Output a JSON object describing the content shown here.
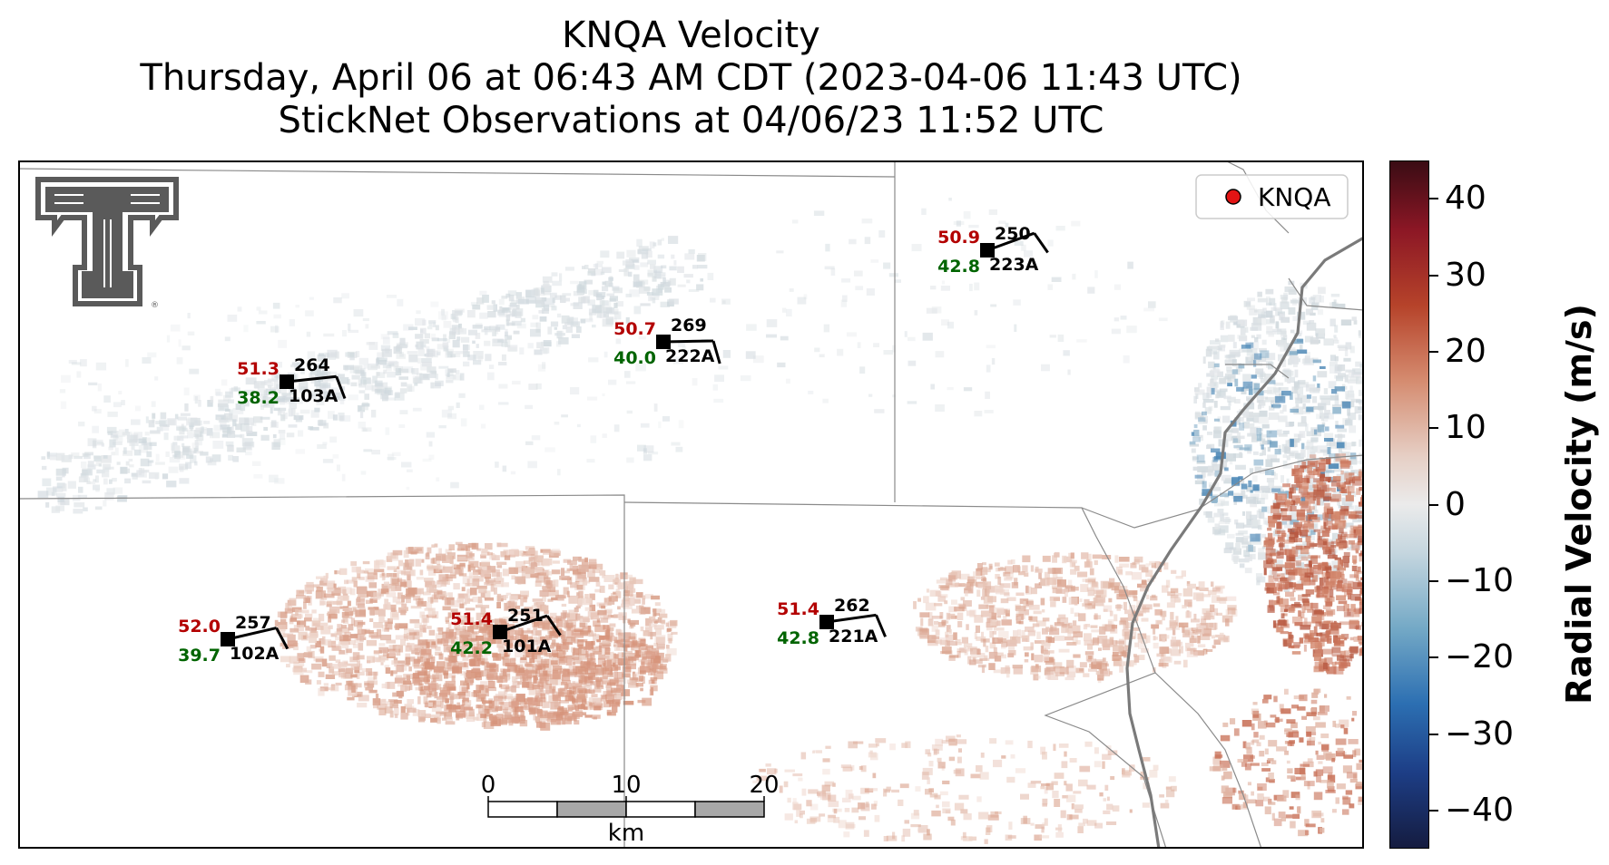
{
  "title": {
    "line1": "KNQA Velocity",
    "line2": "Thursday, April 06 at 06:43 AM CDT (2023-04-06 11:43 UTC)",
    "line3": "StickNet Observations at 04/06/23 11:52 UTC"
  },
  "legend": {
    "marker_color": "#e31414",
    "label": "KNQA"
  },
  "colorbar": {
    "label": "Radial Velocity (m/s)",
    "vmin": -45,
    "vmax": 45,
    "ticks": [
      {
        "value": 40,
        "label": "40"
      },
      {
        "value": 30,
        "label": "30"
      },
      {
        "value": 20,
        "label": "20"
      },
      {
        "value": 10,
        "label": "10"
      },
      {
        "value": 0,
        "label": "0"
      },
      {
        "value": -10,
        "label": "−10"
      },
      {
        "value": -20,
        "label": "−20"
      },
      {
        "value": -30,
        "label": "−30"
      },
      {
        "value": -40,
        "label": "−40"
      }
    ]
  },
  "scalebar": {
    "labels": [
      "0",
      "10",
      "20"
    ],
    "unit": "km"
  },
  "logo": {
    "name": "texas-tech-double-t-logo"
  },
  "stations": [
    {
      "id": "103A",
      "temp": "51.3",
      "dew": "38.2",
      "dir": "264"
    },
    {
      "id": "222A",
      "temp": "50.7",
      "dew": "40.0",
      "dir": "269"
    },
    {
      "id": "223A",
      "temp": "50.9",
      "dew": "42.8",
      "dir": "250"
    },
    {
      "id": "102A",
      "temp": "52.0",
      "dew": "39.7",
      "dir": "257"
    },
    {
      "id": "101A",
      "temp": "51.4",
      "dew": "42.2",
      "dir": "251"
    },
    {
      "id": "221A",
      "temp": "51.4",
      "dew": "42.8",
      "dir": "262"
    }
  ],
  "colors": {
    "temp": "#b30000",
    "dew": "#006400",
    "id": "#000000"
  }
}
